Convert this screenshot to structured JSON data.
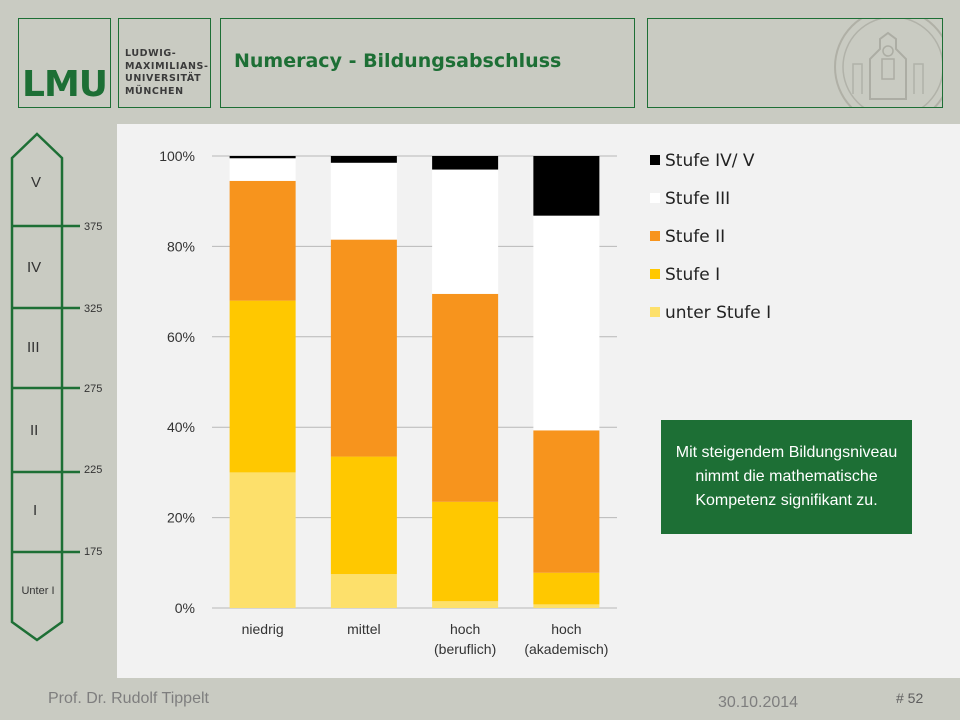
{
  "header": {
    "logo_text": "LMU",
    "university_lines": [
      "LUDWIG-",
      "MAXIMILIANS-",
      "UNIVERSITÄT",
      "MÜNCHEN"
    ],
    "title": "Numeracy - Bildungsabschluss"
  },
  "scale": {
    "levels": [
      "V",
      "IV",
      "III",
      "II",
      "I",
      "Unter I"
    ],
    "thresholds": [
      "375",
      "325",
      "275",
      "225",
      "175"
    ]
  },
  "chart_data": {
    "type": "bar",
    "stacked": true,
    "categories": [
      "niedrig",
      "mittel",
      "hoch (beruflich)",
      "hoch (akademisch)"
    ],
    "category_lines": [
      [
        "niedrig"
      ],
      [
        "mittel"
      ],
      [
        "hoch",
        "(beruflich)"
      ],
      [
        "hoch",
        "(akademisch)"
      ]
    ],
    "series": [
      {
        "name": "unter Stufe I",
        "color": "#fde06b",
        "values": [
          30,
          7.5,
          1.5,
          0.8
        ]
      },
      {
        "name": "Stufe I",
        "color": "#ffc800",
        "values": [
          38,
          26,
          22,
          7
        ]
      },
      {
        "name": "Stufe II",
        "color": "#f7941d",
        "values": [
          26.5,
          48,
          46,
          31.5
        ]
      },
      {
        "name": "Stufe III",
        "color": "#ffffff",
        "values": [
          5,
          17,
          27.5,
          47.5
        ]
      },
      {
        "name": "Stufe IV/ V",
        "color": "#000000",
        "values": [
          0.5,
          1.5,
          3,
          13.2
        ]
      }
    ],
    "y_ticks": [
      "0%",
      "20%",
      "40%",
      "60%",
      "80%",
      "100%"
    ],
    "ylim": [
      0,
      100
    ],
    "grid": true,
    "legend_position": "top-right",
    "legend_order": [
      "Stufe IV/ V",
      "Stufe III",
      "Stufe II",
      "Stufe I",
      "unter Stufe I"
    ]
  },
  "callout": {
    "text": "Mit steigendem Bildungsniveau nimmt die mathematische Kompetenz signifikant zu."
  },
  "footer": {
    "author": "Prof. Dr. Rudolf Tippelt",
    "date": "30.10.2014",
    "page": "# 52"
  }
}
